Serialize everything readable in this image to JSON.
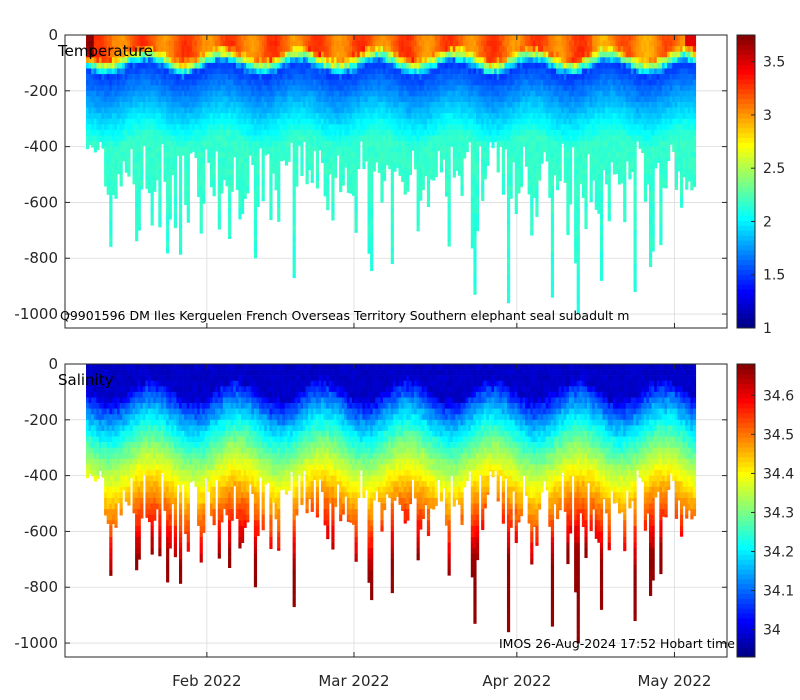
{
  "chart_data": [
    {
      "type": "heatmap",
      "label": "Temperature",
      "variable": "temperature",
      "xlabel": "",
      "ylabel": "",
      "xlim": [
        "2022-01-05",
        "2022-05-11"
      ],
      "ylim": [
        -1050,
        0
      ],
      "y_ticks": [
        0,
        -200,
        -400,
        -600,
        -800,
        -1000
      ],
      "y_tick_labels": [
        "0",
        "-200",
        "-400",
        "-600",
        "-800",
        "-1000"
      ],
      "x_ticks": [
        "2022-02-01",
        "2022-03-01",
        "2022-04-01",
        "2022-05-01"
      ],
      "x_tick_labels": [
        "",
        "",
        "",
        ""
      ],
      "grid": true,
      "colorbar": {
        "range": [
          1,
          3.75
        ],
        "colormap": "jet",
        "ticks": [
          1,
          1.5,
          2,
          2.5,
          3,
          3.5
        ],
        "tick_labels": [
          "1",
          "1.5",
          "2",
          "2.5",
          "3",
          "3.5"
        ]
      },
      "annotation": "Q9901596 DM Iles Kerguelen French Overseas Territory Southern elephant seal subadult m",
      "profile_band": {
        "start_day": 4,
        "end_day": 120
      },
      "mixed_layer_value": 3.1,
      "deep_value": 2.05,
      "min_layer_value": 1.45
    },
    {
      "type": "heatmap",
      "label": "Salinity",
      "variable": "salinity",
      "xlabel": "",
      "ylabel": "",
      "xlim": [
        "2022-01-05",
        "2022-05-11"
      ],
      "ylim": [
        -1050,
        0
      ],
      "y_ticks": [
        0,
        -200,
        -400,
        -600,
        -800,
        -1000
      ],
      "y_tick_labels": [
        "0",
        "-200",
        "-400",
        "-600",
        "-800",
        "-1000"
      ],
      "x_ticks": [
        "2022-02-01",
        "2022-03-01",
        "2022-04-01",
        "2022-05-01"
      ],
      "x_tick_labels": [
        "Feb 2022",
        "Mar 2022",
        "Apr 2022",
        "May 2022"
      ],
      "grid": true,
      "colorbar": {
        "range": [
          33.93,
          34.68
        ],
        "colormap": "jet",
        "ticks": [
          34,
          34.1,
          34.2,
          34.3,
          34.4,
          34.5,
          34.6
        ],
        "tick_labels": [
          "34",
          "34.1",
          "34.2",
          "34.3",
          "34.4",
          "34.5",
          "34.6"
        ]
      },
      "annotation": "IMOS 26-Aug-2024 17:52 Hobart time",
      "surface_value": 33.97,
      "deep_value": 34.66
    }
  ]
}
